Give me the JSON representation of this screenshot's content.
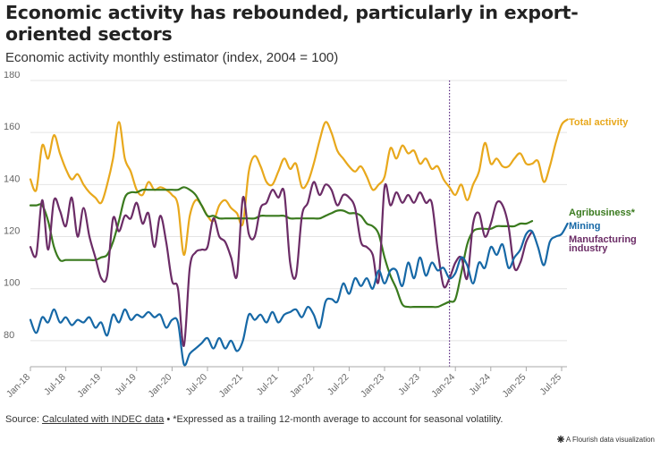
{
  "title": "Economic activity has rebounded, particularly in export-oriented sectors",
  "subtitle": "Economic activity monthly estimator (index, 2004 = 100)",
  "footer": {
    "source_label": "Source: ",
    "source_link": "Calculated with INDEC data",
    "note": " • *Expressed as a trailing 12-month average to account for seasonal volatility."
  },
  "brand": {
    "icon": "flourish-icon",
    "text": "A Flourish data visualization"
  },
  "colors": {
    "total": "#e8a81c",
    "agri": "#3a7a1e",
    "mining": "#1668a6",
    "manufacturing": "#6b2c66",
    "marker": "#5a2a82"
  },
  "chart_data": {
    "type": "line",
    "title": "Economic activity has rebounded, particularly in export-oriented sectors",
    "ylabel": "Economic activity monthly estimator (index, 2004 = 100)",
    "ylim": [
      70,
      180
    ],
    "yticks": [
      80,
      100,
      120,
      140,
      160,
      180
    ],
    "grid": true,
    "x_start": "2018-01",
    "xticks": [
      "Jan-18",
      "Jul-18",
      "Jan-19",
      "Jul-19",
      "Jan-20",
      "Jul-20",
      "Jan-21",
      "Jul-21",
      "Jan-22",
      "Jul-22",
      "Jan-23",
      "Jul-23",
      "Jan-24",
      "Jul-24",
      "Jan-25",
      "Jul-25"
    ],
    "vline": {
      "x": "Dec-23"
    },
    "series": [
      {
        "name": "Total activity",
        "key": "total",
        "values": [
          142,
          138,
          155,
          150,
          159,
          152,
          146,
          142,
          144,
          140,
          137,
          135,
          133,
          140,
          150,
          164,
          150,
          145,
          138,
          136,
          141,
          138,
          139,
          138,
          136,
          132,
          113,
          128,
          134,
          132,
          128,
          126,
          132,
          134,
          131,
          129,
          125,
          145,
          151,
          147,
          141,
          140,
          145,
          150,
          146,
          148,
          139,
          141,
          148,
          157,
          164,
          160,
          153,
          150,
          147,
          145,
          147,
          143,
          138,
          140,
          143,
          154,
          150,
          155,
          152,
          153,
          148,
          150,
          146,
          147,
          142,
          139,
          136,
          140,
          134,
          140,
          145,
          156,
          148,
          150,
          147,
          147,
          150,
          152,
          148,
          148,
          149,
          141,
          147,
          156,
          163,
          165
        ]
      },
      {
        "name": "Agribusiness*",
        "key": "agri",
        "values": [
          132,
          132,
          132,
          126,
          116,
          111,
          111,
          111,
          111,
          111,
          111,
          111,
          112,
          113,
          118,
          126,
          135,
          137,
          137,
          138,
          138,
          138,
          138,
          138,
          138,
          138,
          139,
          138,
          136,
          132,
          128,
          128,
          127,
          127,
          127,
          127,
          127,
          127,
          127,
          128,
          128,
          128,
          128,
          128,
          127,
          127,
          127,
          127,
          127,
          127,
          128,
          129,
          130,
          130,
          129,
          129,
          128,
          125,
          124,
          121,
          112,
          105,
          100,
          94,
          93,
          93,
          93,
          93,
          93,
          93,
          94,
          95,
          96,
          106,
          117,
          122,
          123,
          123,
          123,
          124,
          124,
          124,
          124,
          125,
          125,
          126
        ]
      },
      {
        "name": "Mining",
        "key": "mining",
        "values": [
          88,
          83,
          89,
          87,
          92,
          87,
          89,
          86,
          88,
          87,
          89,
          85,
          87,
          82,
          90,
          87,
          92,
          88,
          90,
          89,
          91,
          89,
          90,
          85,
          88,
          87,
          71,
          75,
          77,
          79,
          81,
          77,
          81,
          77,
          80,
          76,
          80,
          90,
          88,
          90,
          87,
          91,
          87,
          90,
          91,
          92,
          89,
          93,
          90,
          85,
          95,
          96,
          95,
          102,
          98,
          104,
          101,
          104,
          100,
          107,
          102,
          107,
          107,
          101,
          110,
          104,
          112,
          105,
          110,
          107,
          108,
          104,
          106,
          112,
          109,
          102,
          110,
          108,
          116,
          113,
          117,
          108,
          112,
          115,
          121,
          122,
          116,
          109,
          118,
          120,
          121,
          125
        ]
      },
      {
        "name": "Manufacturing industry",
        "key": "manufacturing",
        "values": [
          116,
          113,
          134,
          115,
          134,
          130,
          124,
          135,
          120,
          131,
          120,
          112,
          104,
          105,
          127,
          122,
          128,
          127,
          133,
          125,
          129,
          116,
          128,
          118,
          103,
          100,
          78,
          108,
          114,
          115,
          116,
          127,
          120,
          118,
          112,
          105,
          135,
          121,
          120,
          131,
          133,
          138,
          135,
          137,
          110,
          105,
          128,
          133,
          141,
          136,
          140,
          138,
          132,
          136,
          135,
          131,
          118,
          116,
          113,
          103,
          139,
          132,
          137,
          133,
          136,
          133,
          137,
          133,
          133,
          115,
          101,
          104,
          110,
          112,
          104,
          125,
          129,
          120,
          125,
          133,
          132,
          124,
          108,
          110,
          118,
          122
        ]
      }
    ],
    "annotations": [
      {
        "series": "total",
        "text": "Total activity"
      },
      {
        "series": "agri",
        "text": "Agribusiness*"
      },
      {
        "series": "mining",
        "text": "Mining"
      },
      {
        "series": "manufacturing",
        "text": "Manufacturing industry"
      }
    ]
  }
}
